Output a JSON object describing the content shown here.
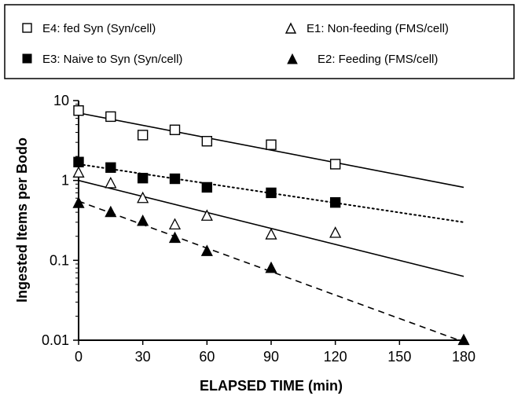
{
  "chart_data": {
    "type": "scatter",
    "title": "",
    "xlabel": "ELAPSED TIME (min)",
    "ylabel": "Ingested Items per Bodo",
    "x_scale": "linear",
    "y_scale": "log",
    "xlim": [
      0,
      180
    ],
    "ylim": [
      0.01,
      10
    ],
    "x_ticks": [
      "0",
      "30",
      "60",
      "90",
      "120",
      "150",
      "180"
    ],
    "y_ticks": [
      "0.01",
      "0.1",
      "1",
      "10"
    ],
    "grid": false,
    "legend_placement": "top",
    "series": [
      {
        "name": "E4: fed Syn (Syn/cell)",
        "marker": "open-square",
        "line_style": "solid",
        "x": [
          0,
          15,
          30,
          45,
          60,
          90,
          120
        ],
        "y": [
          7.5,
          6.3,
          3.7,
          4.3,
          3.1,
          2.8,
          1.6
        ],
        "fit": {
          "x": [
            0,
            180
          ],
          "y": [
            7.0,
            0.82
          ]
        }
      },
      {
        "name": "E1: Non-feeding (FMS/cell)",
        "marker": "open-triangle",
        "line_style": "solid",
        "x": [
          0,
          15,
          30,
          45,
          60,
          90,
          120
        ],
        "y": [
          1.25,
          0.92,
          0.6,
          0.28,
          0.36,
          0.21,
          0.22
        ],
        "fit": {
          "x": [
            0,
            180
          ],
          "y": [
            1.0,
            0.063
          ]
        }
      },
      {
        "name": "E3: Naive to Syn (Syn/cell)",
        "marker": "filled-square",
        "line_style": "dotted",
        "x": [
          0,
          15,
          30,
          45,
          60,
          90,
          120
        ],
        "y": [
          1.7,
          1.45,
          1.07,
          1.05,
          0.82,
          0.7,
          0.53
        ],
        "fit": {
          "x": [
            0,
            180
          ],
          "y": [
            1.6,
            0.3
          ]
        }
      },
      {
        "name": "E2: Feeding (FMS/cell)",
        "marker": "filled-triangle",
        "line_style": "dashed",
        "x": [
          0,
          15,
          30,
          45,
          60,
          90,
          180
        ],
        "y": [
          0.52,
          0.4,
          0.31,
          0.19,
          0.13,
          0.08,
          0.01
        ],
        "fit": {
          "x": [
            0,
            180
          ],
          "y": [
            0.55,
            0.0095
          ]
        }
      }
    ]
  }
}
